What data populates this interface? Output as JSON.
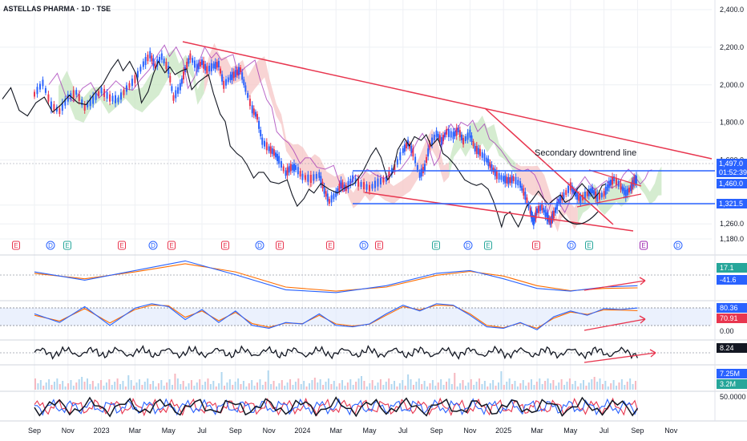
{
  "header": {
    "title": "ASTELLAS PHARMA · 1D · TSE"
  },
  "annotation": {
    "text": "Secondary downtrend line"
  },
  "colors": {
    "grid": "#eef0f4",
    "trend": "#e8364f",
    "level": "#2962ff",
    "price": "#131722",
    "cloud_bear": "#f6c6c6",
    "cloud_bull": "#c7e5c0",
    "macd": "#2962ff",
    "signal": "#ff6d00",
    "stoch_k": "#2962ff",
    "stoch_d": "#ff6d00",
    "band": "#dde8fb"
  },
  "chart_data": [
    {
      "type": "line",
      "name": "price",
      "y_ticks": [
        "2,400.0",
        "2,200.0",
        "2,000.0",
        "1,800.0",
        "1,600.0",
        "1,360.0",
        "1,260.0",
        "1,180.0"
      ],
      "ylim": [
        1180,
        2400
      ],
      "x_ticks": [
        "Sep",
        "Nov",
        "2023",
        "Mar",
        "May",
        "Jul",
        "Sep",
        "Nov",
        "2024",
        "Mar",
        "May",
        "Jul",
        "Sep",
        "Nov",
        "2025",
        "Mar",
        "May",
        "Jul",
        "Sep",
        "Nov"
      ],
      "x_months": [
        0,
        2,
        4,
        6,
        8,
        10,
        12,
        14,
        16,
        18,
        20,
        22,
        24,
        26,
        28,
        30,
        32,
        34,
        36,
        38
      ],
      "close_series": [
        [
          0,
          1950
        ],
        [
          0.5,
          2010
        ],
        [
          1,
          1890
        ],
        [
          1.5,
          1860
        ],
        [
          2,
          1930
        ],
        [
          2.5,
          1960
        ],
        [
          3,
          1880
        ],
        [
          3.5,
          1920
        ],
        [
          4,
          1970
        ],
        [
          4.5,
          1930
        ],
        [
          5,
          1920
        ],
        [
          5.5,
          1980
        ],
        [
          6,
          2030
        ],
        [
          6.5,
          2110
        ],
        [
          6.9,
          2160
        ],
        [
          7.2,
          2100
        ],
        [
          7.6,
          2150
        ],
        [
          8,
          2080
        ],
        [
          8.3,
          1930
        ],
        [
          8.7,
          1990
        ],
        [
          9,
          2080
        ],
        [
          9.3,
          2150
        ],
        [
          9.7,
          2090
        ],
        [
          10,
          2120
        ],
        [
          10.3,
          2080
        ],
        [
          10.7,
          2100
        ],
        [
          11,
          2110
        ],
        [
          11.3,
          2000
        ],
        [
          11.7,
          2040
        ],
        [
          12,
          2060
        ],
        [
          12.3,
          2080
        ],
        [
          12.6,
          1980
        ],
        [
          13,
          1870
        ],
        [
          13.3,
          1830
        ],
        [
          13.6,
          1700
        ],
        [
          14,
          1660
        ],
        [
          14.3,
          1640
        ],
        [
          14.6,
          1600
        ],
        [
          15,
          1530
        ],
        [
          15.3,
          1560
        ],
        [
          15.6,
          1560
        ],
        [
          16,
          1510
        ],
        [
          16.5,
          1500
        ],
        [
          17,
          1520
        ],
        [
          17.3,
          1440
        ],
        [
          17.6,
          1380
        ],
        [
          18,
          1420
        ],
        [
          18.3,
          1470
        ],
        [
          18.6,
          1450
        ],
        [
          19,
          1500
        ],
        [
          19.5,
          1470
        ],
        [
          20,
          1450
        ],
        [
          20.5,
          1480
        ],
        [
          21,
          1500
        ],
        [
          21.5,
          1560
        ],
        [
          22,
          1650
        ],
        [
          22.3,
          1690
        ],
        [
          22.6,
          1640
        ],
        [
          23,
          1520
        ],
        [
          23.3,
          1560
        ],
        [
          23.6,
          1680
        ],
        [
          24,
          1740
        ],
        [
          24.3,
          1700
        ],
        [
          24.6,
          1750
        ],
        [
          25,
          1730
        ],
        [
          25.3,
          1760
        ],
        [
          25.6,
          1700
        ],
        [
          26,
          1740
        ],
        [
          26.3,
          1660
        ],
        [
          26.6,
          1640
        ],
        [
          27,
          1600
        ],
        [
          27.3,
          1560
        ],
        [
          27.6,
          1520
        ],
        [
          28,
          1500
        ],
        [
          28.3,
          1490
        ],
        [
          28.6,
          1500
        ],
        [
          29,
          1470
        ],
        [
          29.3,
          1410
        ],
        [
          29.6,
          1330
        ],
        [
          29.8,
          1270
        ],
        [
          30,
          1330
        ],
        [
          30.3,
          1350
        ],
        [
          30.6,
          1300
        ],
        [
          30.8,
          1270
        ],
        [
          31,
          1310
        ],
        [
          31.3,
          1380
        ],
        [
          31.6,
          1410
        ],
        [
          32,
          1460
        ],
        [
          32.3,
          1420
        ],
        [
          32.6,
          1390
        ],
        [
          33,
          1420
        ],
        [
          33.3,
          1440
        ],
        [
          33.6,
          1400
        ],
        [
          34,
          1420
        ],
        [
          34.3,
          1470
        ],
        [
          34.6,
          1500
        ],
        [
          35,
          1460
        ],
        [
          35.3,
          1420
        ],
        [
          35.6,
          1450
        ],
        [
          35.8,
          1490
        ],
        [
          36,
          1497
        ]
      ]
    },
    {
      "type": "line",
      "name": "MACD",
      "y_ticks": [
        "17.1",
        "-41.6"
      ],
      "macd": [
        [
          0,
          20
        ],
        [
          3,
          -10
        ],
        [
          6,
          25
        ],
        [
          9,
          60
        ],
        [
          12,
          10
        ],
        [
          15,
          -45
        ],
        [
          18,
          -55
        ],
        [
          21,
          -30
        ],
        [
          24,
          15
        ],
        [
          26,
          25
        ],
        [
          28,
          -5
        ],
        [
          30,
          -40
        ],
        [
          32,
          -50
        ],
        [
          34,
          -35
        ],
        [
          36,
          -30
        ]
      ],
      "signal": [
        [
          0,
          15
        ],
        [
          3,
          -5
        ],
        [
          6,
          20
        ],
        [
          9,
          50
        ],
        [
          12,
          20
        ],
        [
          15,
          -35
        ],
        [
          18,
          -50
        ],
        [
          21,
          -35
        ],
        [
          24,
          8
        ],
        [
          26,
          22
        ],
        [
          28,
          5
        ],
        [
          30,
          -30
        ],
        [
          32,
          -48
        ],
        [
          34,
          -40
        ],
        [
          36,
          -38
        ]
      ]
    },
    {
      "type": "line",
      "name": "Stochastic",
      "y_ticks": [
        "80.36",
        "70.91",
        "0.00"
      ],
      "k": [
        [
          0,
          60
        ],
        [
          1.5,
          30
        ],
        [
          3,
          85
        ],
        [
          4.5,
          20
        ],
        [
          6,
          80
        ],
        [
          7,
          95
        ],
        [
          8,
          85
        ],
        [
          9,
          40
        ],
        [
          10,
          75
        ],
        [
          11,
          30
        ],
        [
          12,
          70
        ],
        [
          13,
          20
        ],
        [
          14,
          10
        ],
        [
          15,
          30
        ],
        [
          16,
          25
        ],
        [
          17,
          60
        ],
        [
          18,
          20
        ],
        [
          19,
          15
        ],
        [
          20,
          25
        ],
        [
          21,
          60
        ],
        [
          22,
          90
        ],
        [
          23,
          70
        ],
        [
          24,
          95
        ],
        [
          25,
          90
        ],
        [
          26,
          55
        ],
        [
          27,
          15
        ],
        [
          28,
          10
        ],
        [
          29,
          30
        ],
        [
          30,
          5
        ],
        [
          31,
          50
        ],
        [
          32,
          70
        ],
        [
          33,
          55
        ],
        [
          34,
          78
        ],
        [
          35,
          75
        ],
        [
          36,
          80.36
        ]
      ],
      "d": [
        [
          0,
          55
        ],
        [
          1.5,
          35
        ],
        [
          3,
          78
        ],
        [
          4.5,
          28
        ],
        [
          6,
          75
        ],
        [
          7,
          90
        ],
        [
          8,
          88
        ],
        [
          9,
          48
        ],
        [
          10,
          70
        ],
        [
          11,
          36
        ],
        [
          12,
          65
        ],
        [
          13,
          26
        ],
        [
          14,
          14
        ],
        [
          15,
          28
        ],
        [
          16,
          26
        ],
        [
          17,
          55
        ],
        [
          18,
          25
        ],
        [
          19,
          18
        ],
        [
          20,
          24
        ],
        [
          21,
          55
        ],
        [
          22,
          85
        ],
        [
          23,
          74
        ],
        [
          24,
          90
        ],
        [
          25,
          88
        ],
        [
          26,
          60
        ],
        [
          27,
          20
        ],
        [
          28,
          12
        ],
        [
          29,
          28
        ],
        [
          30,
          10
        ],
        [
          31,
          45
        ],
        [
          32,
          66
        ],
        [
          33,
          58
        ],
        [
          34,
          74
        ],
        [
          35,
          73
        ],
        [
          36,
          70.91
        ]
      ]
    },
    {
      "type": "line",
      "name": "Momentum",
      "y_ticks": [
        "8.24"
      ]
    },
    {
      "type": "bar",
      "name": "Volume",
      "y_ticks": [
        "7.25M",
        "3.2M"
      ]
    },
    {
      "type": "line",
      "name": "Oscillators",
      "y_ticks": [
        "50.0000"
      ]
    }
  ],
  "price_tags": {
    "last": "1,497.0",
    "countdown": "01:52:39",
    "level1": "1,460.0",
    "level2": "1,321.5"
  },
  "events": [
    {
      "label": "E",
      "kind": "earnings-red"
    },
    {
      "label": "D",
      "kind": "dividend"
    },
    {
      "label": "E",
      "kind": "earnings-green"
    },
    {
      "label": "E",
      "kind": "earnings-red"
    },
    {
      "label": "D",
      "kind": "dividend"
    },
    {
      "label": "E",
      "kind": "earnings-red"
    },
    {
      "label": "E",
      "kind": "earnings-red"
    },
    {
      "label": "D",
      "kind": "dividend"
    },
    {
      "label": "E",
      "kind": "earnings-red"
    },
    {
      "label": "E",
      "kind": "earnings-red"
    },
    {
      "label": "D",
      "kind": "dividend"
    },
    {
      "label": "E",
      "kind": "earnings-red"
    },
    {
      "label": "E",
      "kind": "earnings-green"
    },
    {
      "label": "D",
      "kind": "dividend"
    },
    {
      "label": "E",
      "kind": "earnings-green"
    },
    {
      "label": "E",
      "kind": "earnings-red"
    },
    {
      "label": "D",
      "kind": "dividend"
    },
    {
      "label": "E",
      "kind": "earnings-green"
    },
    {
      "label": "E",
      "kind": "earnings-purple"
    },
    {
      "label": "D",
      "kind": "dividend"
    }
  ]
}
